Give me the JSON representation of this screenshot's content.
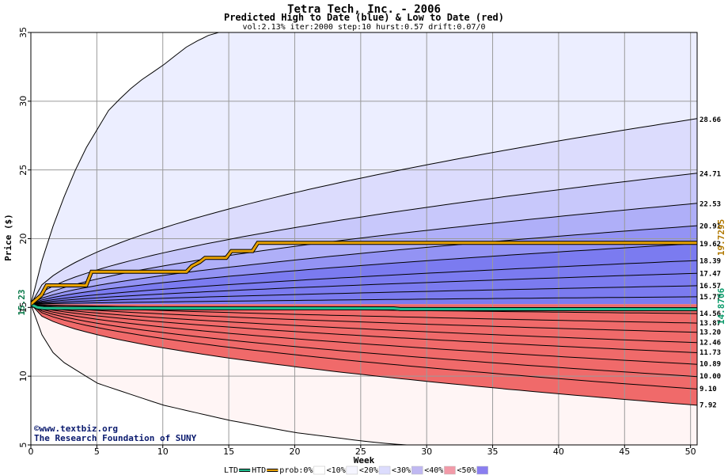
{
  "chart_data": {
    "type": "area",
    "title": "Tetra Tech, Inc. - 2006",
    "subtitle": "Predicted High to Date (blue) &  Low to Date (red)",
    "params": "vol:2.13% iter:2000 step:10 hurst:0.57 drift:0.07/0",
    "xlabel": "Week",
    "ylabel": "Price ($)",
    "xlim": [
      0,
      50.5
    ],
    "ylim": [
      5,
      35
    ],
    "xticks": [
      0,
      5,
      10,
      15,
      20,
      25,
      30,
      35,
      40,
      45,
      50
    ],
    "yticks": [
      5,
      10,
      15,
      20,
      25,
      30,
      35
    ],
    "grid": true,
    "start_price": 15.23,
    "start_price_label": "15.23",
    "band_colors": [
      "#fff5f5",
      "#fde0e0",
      "#fbc9c9",
      "#f8a9a9",
      "#f48484",
      "#f06a6a",
      "#eceeff",
      "#dcdcfd",
      "#c8c8fb",
      "#afaff8",
      "#9393f4",
      "#7b7bf0"
    ],
    "upper_curves": [
      {
        "label": "28.66",
        "end": 28.66,
        "p": 0.55
      },
      {
        "label": "24.71",
        "end": 24.71,
        "p": 0.58
      },
      {
        "label": "22.53",
        "end": 22.53,
        "p": 0.6
      },
      {
        "label": "20.91",
        "end": 20.91,
        "p": 0.62
      },
      {
        "label": "19.62",
        "end": 19.62,
        "p": 0.64
      },
      {
        "label": "18.39",
        "end": 18.39,
        "p": 0.66
      },
      {
        "label": "17.47",
        "end": 17.47,
        "p": 0.68
      },
      {
        "label": "16.57",
        "end": 16.57,
        "p": 0.7
      },
      {
        "label": "15.77",
        "end": 15.77,
        "p": 0.72
      }
    ],
    "lower_curves": [
      {
        "label": "14.56",
        "end": 14.56,
        "p": 0.72
      },
      {
        "label": "13.87",
        "end": 13.87,
        "p": 0.68
      },
      {
        "label": "13.20",
        "end": 13.2,
        "p": 0.66
      },
      {
        "label": "12.46",
        "end": 12.46,
        "p": 0.64
      },
      {
        "label": "11.73",
        "end": 11.73,
        "p": 0.62
      },
      {
        "label": "10.89",
        "end": 10.89,
        "p": 0.6
      },
      {
        "label": "10.00",
        "end": 10.0,
        "p": 0.58
      },
      {
        "label": "9.10",
        "end": 9.1,
        "p": 0.56
      },
      {
        "label": "7.92",
        "end": 7.92,
        "p": 0.52
      }
    ],
    "outer_upper": {
      "x": [
        0,
        1,
        2,
        3,
        4,
        6,
        8,
        10,
        12,
        13.5,
        15
      ],
      "y": [
        15.23,
        19.0,
        21.8,
        24.2,
        26.3,
        29.5,
        31.3,
        32.6,
        34.1,
        34.8,
        35.2
      ]
    },
    "outer_lower": {
      "x": [
        0,
        1,
        2,
        5,
        10,
        15,
        20,
        25,
        27,
        30
      ],
      "y": [
        15.23,
        12.6,
        11.3,
        9.5,
        7.9,
        6.8,
        5.9,
        5.3,
        5.1,
        4.9
      ]
    },
    "high_to_date": {
      "color": "#e8a200",
      "end_value": 19.7295,
      "end_label": "19.7295",
      "x": [
        0,
        0.8,
        1.2,
        4.2,
        4.6,
        11.8,
        12.2,
        12.8,
        13.2,
        14.8,
        15.2,
        16.8,
        17.2,
        50.5
      ],
      "y": [
        15.23,
        15.9,
        16.6,
        16.6,
        17.6,
        17.6,
        18.0,
        18.3,
        18.6,
        18.6,
        19.1,
        19.1,
        19.7,
        19.7
      ]
    },
    "low_to_date": {
      "color": "#20c090",
      "end_value": 14.8706,
      "end_label": "14.8706",
      "x": [
        0,
        0.5,
        1.0,
        27.5,
        28.0,
        50.5
      ],
      "y": [
        15.23,
        15.0,
        14.95,
        14.93,
        14.88,
        14.87
      ]
    },
    "credit_lines": [
      "©www.textbiz.org",
      "The Research Foundation of SUNY"
    ],
    "legend": {
      "items": [
        {
          "label": "LTD",
          "kind": "line",
          "color": "#20c090"
        },
        {
          "label": "HTD",
          "kind": "line",
          "color": "#e8a200"
        },
        {
          "label": "prob:0%",
          "kind": "swatch",
          "color": "#ffffff"
        },
        {
          "label": "<10%",
          "kind": "swatch",
          "color": "#f5f5ff"
        },
        {
          "label": "<20%",
          "kind": "swatch",
          "color": "#dcdcfd"
        },
        {
          "label": "<30%",
          "kind": "swatch",
          "color": "#c0b8f2"
        },
        {
          "label": "<40%",
          "kind": "swatch",
          "color": "#f29aa8"
        },
        {
          "label": "<50%",
          "kind": "swatch",
          "color": "#8a7ef0"
        }
      ]
    }
  }
}
